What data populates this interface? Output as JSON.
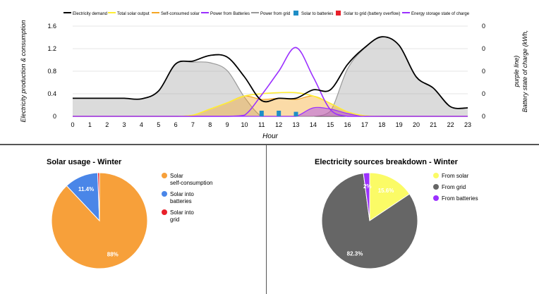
{
  "chart_data": [
    {
      "type": "area",
      "xlabel": "Hour",
      "ylabel": "Electricity production & consumption",
      "y2label": "Battery state of charge (kWh, purple line)",
      "ylim": [
        0,
        1.6
      ],
      "yticks": [
        "0",
        "0.4",
        "0.8",
        "1.2",
        "1.6"
      ],
      "y2ticks": [
        "0",
        "0",
        "0",
        "0",
        "0"
      ],
      "x": [
        0,
        1,
        2,
        3,
        4,
        5,
        6,
        7,
        8,
        9,
        10,
        11,
        12,
        13,
        14,
        15,
        16,
        17,
        18,
        19,
        20,
        21,
        22,
        23
      ],
      "legend_position": "top",
      "series": [
        {
          "name": "Electricity demand",
          "color": "#000000",
          "kind": "line",
          "values": [
            0.32,
            0.32,
            0.32,
            0.32,
            0.31,
            0.45,
            0.93,
            0.98,
            1.08,
            1.05,
            0.7,
            0.28,
            0.32,
            0.32,
            0.47,
            0.47,
            0.92,
            1.22,
            1.41,
            1.26,
            0.7,
            0.5,
            0.17,
            0.15
          ]
        },
        {
          "name": "Total solar output",
          "color": "#ffee33",
          "kind": "line",
          "values": [
            0,
            0,
            0,
            0,
            0,
            0,
            0,
            0.02,
            0.13,
            0.24,
            0.36,
            0.4,
            0.42,
            0.42,
            0.36,
            0.23,
            0.08,
            0.01,
            0,
            0,
            0,
            0,
            0,
            0
          ]
        },
        {
          "name": "Self-consumed solar",
          "color": "#f5a623",
          "kind": "area",
          "values": [
            0,
            0,
            0,
            0,
            0,
            0,
            0,
            0.02,
            0.13,
            0.24,
            0.36,
            0.3,
            0.32,
            0.3,
            0.36,
            0.23,
            0.08,
            0.01,
            0,
            0,
            0,
            0,
            0,
            0
          ]
        },
        {
          "name": "Power from Batteries",
          "color": "#9b30ff",
          "kind": "area",
          "values": [
            0,
            0,
            0,
            0,
            0,
            0,
            0,
            0,
            0,
            0,
            0,
            0,
            0,
            0,
            0.15,
            0.13,
            0.05,
            0,
            0,
            0,
            0,
            0,
            0,
            0
          ]
        },
        {
          "name": "Power from grid",
          "color": "#999999",
          "kind": "area",
          "values": [
            0.32,
            0.32,
            0.32,
            0.32,
            0.31,
            0.45,
            0.93,
            0.96,
            0.95,
            0.81,
            0.34,
            0,
            0,
            0,
            0,
            0.09,
            0.84,
            1.21,
            1.41,
            1.26,
            0.7,
            0.5,
            0.17,
            0.15
          ]
        },
        {
          "name": "Solar to batteries",
          "color": "#1f8ec6",
          "kind": "bar",
          "values": [
            0,
            0,
            0,
            0,
            0,
            0,
            0,
            0,
            0,
            0,
            0,
            0.1,
            0.1,
            0.08,
            0,
            0,
            0,
            0,
            0,
            0,
            0,
            0,
            0,
            0
          ]
        },
        {
          "name": "Solar to grid (battery overflow)",
          "color": "#e8202a",
          "kind": "bar",
          "values": [
            0,
            0,
            0,
            0,
            0,
            0,
            0,
            0,
            0,
            0,
            0,
            0,
            0,
            0,
            0,
            0,
            0,
            0,
            0,
            0,
            0,
            0,
            0,
            0
          ]
        },
        {
          "name": "Energy storage state of charge",
          "color": "#9b30ff",
          "kind": "line",
          "values": [
            0,
            0,
            0,
            0,
            0,
            0,
            0,
            0,
            0,
            0,
            0.02,
            0.38,
            0.8,
            1.22,
            0.7,
            0.12,
            0,
            0,
            0,
            0,
            0,
            0,
            0,
            0
          ]
        }
      ]
    },
    {
      "type": "pie",
      "title": "Solar usage - Winter",
      "legend_position": "right",
      "slices": [
        {
          "label": "Solar self-consumption",
          "value": 88.0,
          "display": "88%",
          "color": "#f7a03a"
        },
        {
          "label": "Solar into batteries",
          "value": 11.4,
          "display": "11.4%",
          "color": "#4a86e8"
        },
        {
          "label": "Solar into grid",
          "value": 0.6,
          "display": "",
          "color": "#e8202a"
        }
      ]
    },
    {
      "type": "pie",
      "title": "Electricity sources breakdown - Winter",
      "legend_position": "right",
      "slices": [
        {
          "label": "From solar",
          "value": 15.6,
          "display": "15.6%",
          "color": "#fbfb66"
        },
        {
          "label": "From grid",
          "value": 82.3,
          "display": "82.3%",
          "color": "#666666"
        },
        {
          "label": "From batteries",
          "value": 2.1,
          "display": "2%",
          "color": "#9b30ff"
        }
      ]
    }
  ]
}
